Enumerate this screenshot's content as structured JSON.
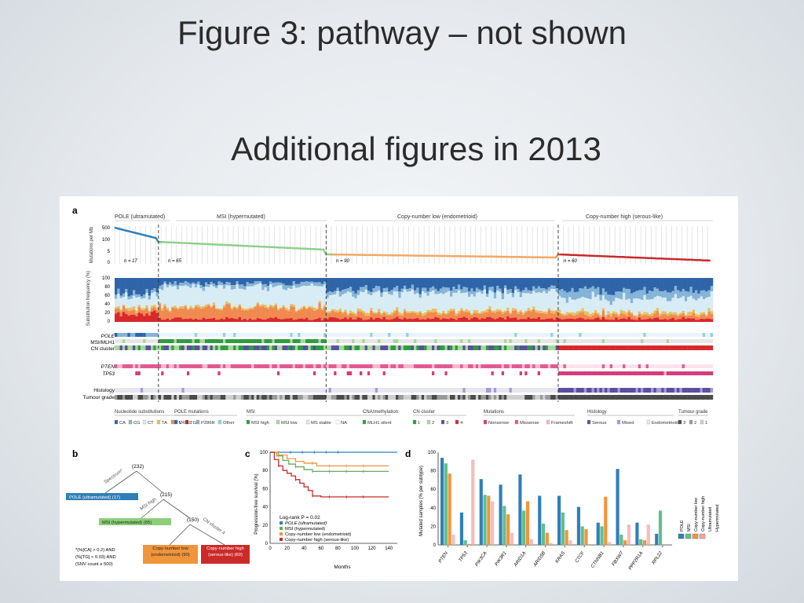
{
  "slide": {
    "title": "Figure 3: pathway – not shown",
    "subtitle": "Additional figures in 2013"
  },
  "panel_a": {
    "panel_label": "a",
    "group_headers": [
      "POLE (ultramutated)",
      "MSI (hypermutated)",
      "Copy-number low (endometrioid)",
      "Copy-number high (serous-like)"
    ],
    "mutations_axis_label": "Mutations per Mb",
    "mutation_ticks": [
      "500",
      "100",
      "5",
      "0"
    ],
    "group_counts": [
      "n = 17",
      "n = 65",
      "n = 90",
      "n = 60"
    ],
    "subst_axis_label": "Substitution frequency (%)",
    "subst_ticks": [
      "100",
      "80",
      "60",
      "40",
      "20",
      "0"
    ],
    "track_labels": [
      "POLE",
      "MSI/MLH1",
      "CN cluster",
      "PTEN",
      "TP53",
      "Histology",
      "Tumour grade"
    ],
    "legend": {
      "nucleotide": {
        "title": "Nucleotide substitutions",
        "items": [
          "CA",
          "CG",
          "CT",
          "TA",
          "TC",
          "TG"
        ]
      },
      "pole": {
        "title": "POLE mutations",
        "items": [
          "V411L",
          "P286R",
          "Other"
        ]
      },
      "msi": {
        "title": "MSI",
        "items": [
          "MSI high",
          "MSI low",
          "MS stable",
          "NA"
        ]
      },
      "cna": {
        "title": "CNA/methylation",
        "items": [
          "MLH1 silent"
        ]
      },
      "cncluster": {
        "title": "CN cluster",
        "items": [
          "1",
          "2",
          "3",
          "4"
        ]
      },
      "mutations": {
        "title": "Mutations",
        "items": [
          "Nonsense",
          "Missense",
          "Frameshift"
        ]
      },
      "histology": {
        "title": "Histology",
        "items": [
          "Serous",
          "Mixed",
          "Endometrioid"
        ]
      },
      "grade": {
        "title": "Tumour grade",
        "items": [
          "3",
          "2",
          "1"
        ]
      }
    }
  },
  "panel_b": {
    "panel_label": "b",
    "counts": [
      "(232)",
      "(215)",
      "(150)"
    ],
    "edge_labels": [
      "Spectrum*",
      "MSI high",
      "CN cluster 4"
    ],
    "boxes": [
      "POLE (ultramutated) (17)",
      "MSI (hypermutated) (65)",
      "Copy-number low (endometrioid) (90)",
      "Copy-number high (serous-like) (60)"
    ],
    "footnote": [
      "*(%[CA] > 0.2) AND",
      "(%[TG] < 0.03) AND",
      "(SNV count ≥ 500)"
    ]
  },
  "panel_c": {
    "panel_label": "c",
    "ylabel": "Progression-free survival (%)",
    "xlabel": "Months",
    "y_ticks": [
      "100",
      "80",
      "60",
      "40",
      "20",
      "0"
    ],
    "x_ticks": [
      "0",
      "20",
      "40",
      "60",
      "80",
      "100",
      "120",
      "140"
    ],
    "logrank": "Log-rank P = 0.02",
    "legend": [
      "POLE (ultramutated)",
      "MSI (hypermutated)",
      "Copy-number low (endometrioid)",
      "Copy-number high (serous-like)"
    ]
  },
  "panel_d": {
    "panel_label": "d",
    "ylabel": "Mutated samples (% per subtype)",
    "y_ticks": [
      "100",
      "80",
      "60",
      "40",
      "20",
      "0"
    ],
    "genes": [
      "PTEN",
      "TP53",
      "PIK3CA",
      "PIK3R1",
      "ARID1A",
      "ARID5B",
      "KRAS",
      "CTCF",
      "CTNNB1",
      "FBXW7",
      "PPP2R1A",
      "RPL22"
    ],
    "legend": [
      "POLE",
      "MSI",
      "Copy-number low",
      "Copy-number high",
      "Ultramutated",
      "Hypermutated"
    ]
  },
  "chart_data": [
    {
      "type": "line",
      "title": "",
      "xlabel": "Months",
      "ylabel": "Progression-free survival (%)",
      "xlim": [
        0,
        150
      ],
      "ylim": [
        0,
        100
      ],
      "series": [
        {
          "name": "POLE (ultramutated)",
          "color": "#2f7fb8",
          "x": [
            0,
            150
          ],
          "y": [
            100,
            100
          ]
        },
        {
          "name": "MSI (hypermutated)",
          "color": "#6aaa5a",
          "x": [
            0,
            8,
            15,
            22,
            30,
            40,
            50,
            140
          ],
          "y": [
            100,
            96,
            91,
            87,
            84,
            81,
            79,
            79
          ]
        },
        {
          "name": "Copy-number low (endometrioid)",
          "color": "#f0953c",
          "x": [
            0,
            10,
            20,
            30,
            40,
            55,
            140
          ],
          "y": [
            100,
            97,
            93,
            90,
            88,
            85,
            85
          ]
        },
        {
          "name": "Copy-number high (serous-like)",
          "color": "#cc2a2a",
          "x": [
            0,
            5,
            10,
            15,
            20,
            25,
            30,
            35,
            40,
            45,
            50,
            60,
            140
          ],
          "y": [
            100,
            92,
            85,
            80,
            77,
            74,
            70,
            66,
            62,
            58,
            52,
            51,
            51
          ]
        }
      ]
    },
    {
      "type": "bar",
      "title": "",
      "xlabel": "",
      "ylabel": "Mutated samples (% per subtype)",
      "ylim": [
        0,
        100
      ],
      "categories": [
        "PTEN",
        "TP53",
        "PIK3CA",
        "PIK3R1",
        "ARID1A",
        "ARID5B",
        "KRAS",
        "CTCF",
        "CTNNB1",
        "FBXW7",
        "PPP2R1A",
        "RPL22"
      ],
      "series": [
        {
          "name": "POLE",
          "color": "#2f7fb8",
          "values": [
            94,
            35,
            71,
            65,
            76,
            53,
            53,
            41,
            24,
            82,
            24,
            12
          ]
        },
        {
          "name": "MSI",
          "color": "#5fbf8f",
          "values": [
            88,
            5,
            54,
            42,
            37,
            23,
            35,
            20,
            20,
            11,
            6,
            37
          ]
        },
        {
          "name": "Copy-number low",
          "color": "#f0953c",
          "values": [
            77,
            1,
            53,
            33,
            47,
            13,
            16,
            17,
            52,
            5,
            5,
            0
          ]
        },
        {
          "name": "Copy-number high",
          "color": "#f4a6a6",
          "values": [
            11,
            92,
            47,
            13,
            6,
            2,
            5,
            0,
            3,
            22,
            22,
            0
          ]
        }
      ]
    }
  ]
}
